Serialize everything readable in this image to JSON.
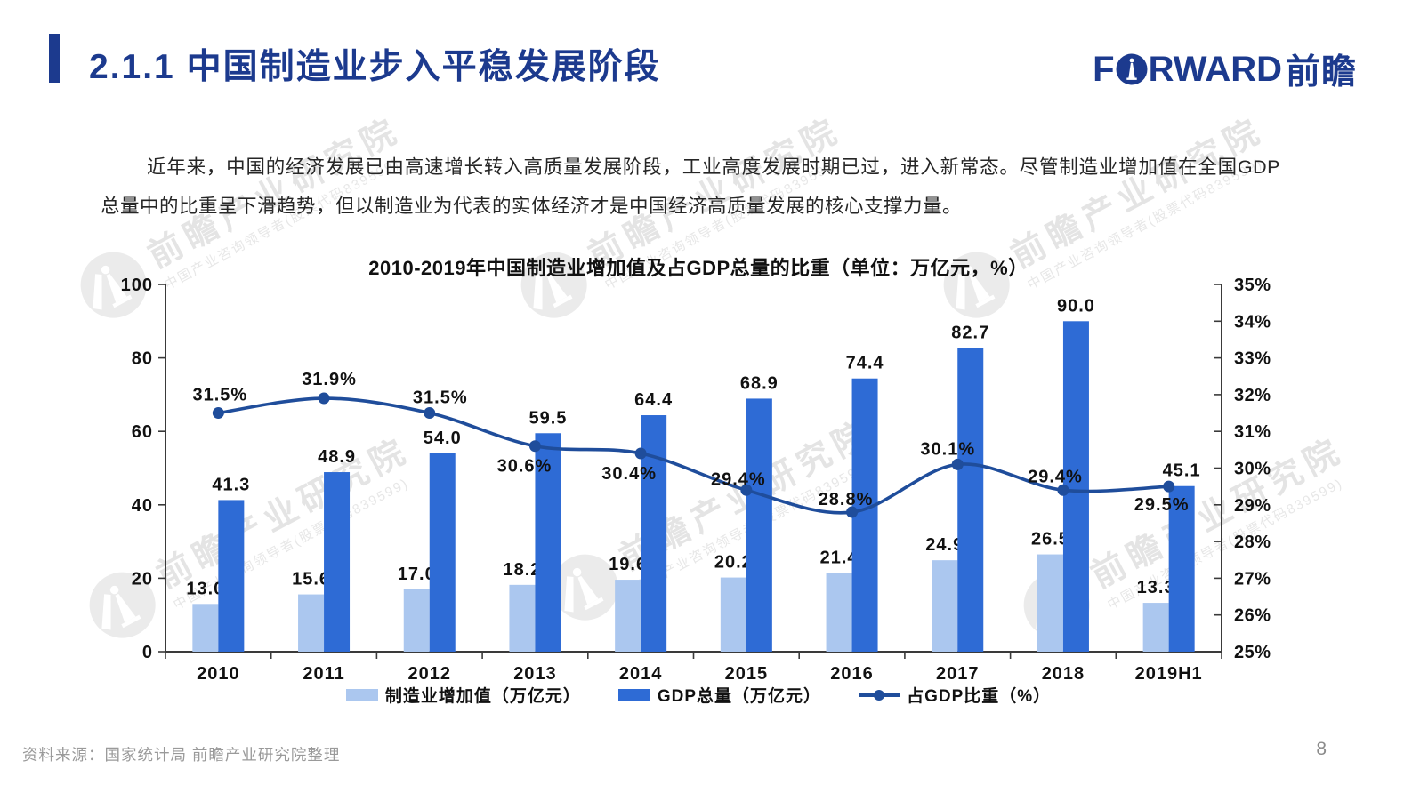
{
  "page": {
    "background": "#ffffff"
  },
  "header": {
    "title": "2.1.1 中国制造业步入平稳发展阶段",
    "accent_color": "#1c3a8e",
    "logo": {
      "en_part1": "F",
      "en_part2": "RWARD",
      "cn": "前瞻",
      "color": "#1c3a8e"
    }
  },
  "body_paragraph": "近年来，中国的经济发展已由高速增长转入高质量发展阶段，工业高度发展时期已过，进入新常态。尽管制造业增加值在全国GDP总量中的比重呈下滑趋势，但以制造业为代表的实体经济才是中国经济高质量发展的核心支撑力量。",
  "chart_data": {
    "type": "bar+line",
    "title": "2010-2019年中国制造业增加值及占GDP总量的比重（单位：万亿元，%）",
    "categories": [
      "2010",
      "2011",
      "2012",
      "2013",
      "2014",
      "2015",
      "2016",
      "2017",
      "2018",
      "2019H1"
    ],
    "series": [
      {
        "name": "制造业增加值（万亿元）",
        "type": "bar",
        "axis": "left",
        "color": "#abc7ef",
        "values": [
          13.0,
          15.6,
          17.0,
          18.2,
          19.6,
          20.2,
          21.4,
          24.9,
          26.5,
          13.3
        ]
      },
      {
        "name": "GDP总量（万亿元）",
        "type": "bar",
        "axis": "left",
        "color": "#2e6bd5",
        "values": [
          41.3,
          48.9,
          54.0,
          59.5,
          64.4,
          68.9,
          74.4,
          82.7,
          90.0,
          45.1
        ]
      },
      {
        "name": "占GDP比重（%）",
        "type": "line",
        "axis": "right",
        "color": "#1f4d9b",
        "values": [
          31.5,
          31.9,
          31.5,
          30.6,
          30.4,
          29.4,
          28.8,
          30.1,
          29.4,
          29.5
        ]
      }
    ],
    "left_axis": {
      "min": 0,
      "max": 100,
      "ticks": [
        0,
        20,
        40,
        60,
        80,
        100
      ]
    },
    "right_axis": {
      "min": 25,
      "max": 35,
      "tick_labels": [
        "25%",
        "26%",
        "27%",
        "28%",
        "29%",
        "30%",
        "31%",
        "32%",
        "33%",
        "34%",
        "35%"
      ]
    },
    "grid": false,
    "legend_position": "bottom",
    "axis_color": "#3a3a3a",
    "label_color": "#111111"
  },
  "watermark": {
    "line1": "前瞻产业研究院",
    "line2": "中国产业咨询领导者(股票代码839599)"
  },
  "footer": {
    "source": "资料来源：国家统计局  前瞻产业研究院整理",
    "page_number": "8"
  }
}
